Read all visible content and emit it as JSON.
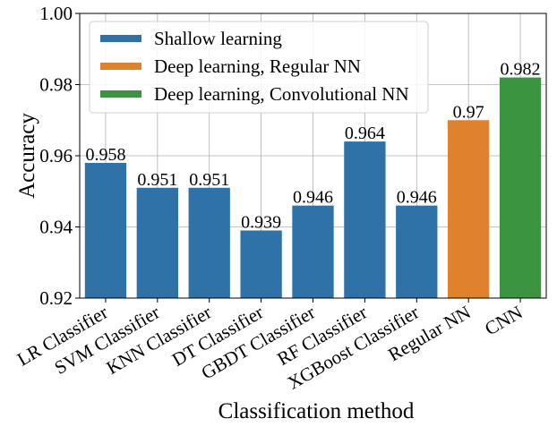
{
  "chart_data": {
    "type": "bar",
    "title": "",
    "xlabel": "Classification method",
    "ylabel": "Accuracy",
    "ylim": [
      0.92,
      1.0
    ],
    "yticks": [
      "0.92",
      "0.94",
      "0.96",
      "0.98",
      "1.00"
    ],
    "grid": true,
    "legend_position": "top-left",
    "categories": [
      "LR Classifier",
      "SVM Classifier",
      "KNN Classifier",
      "DT Classifier",
      "GBDT Classifier",
      "RF Classifier",
      "XGBoost Classifier",
      "Regular NN",
      "CNN"
    ],
    "values": [
      0.958,
      0.951,
      0.951,
      0.939,
      0.946,
      0.964,
      0.946,
      0.97,
      0.982
    ],
    "data_labels": [
      "0.958",
      "0.951",
      "0.951",
      "0.939",
      "0.946",
      "0.964",
      "0.946",
      "0.97",
      "0.982"
    ],
    "groups": [
      0,
      0,
      0,
      0,
      0,
      0,
      0,
      1,
      2
    ],
    "legend": [
      {
        "name": "Shallow learning",
        "color": "#2e72a8"
      },
      {
        "name": "Deep learning, Regular NN",
        "color": "#e0822c"
      },
      {
        "name": "Deep learning, Convolutional NN",
        "color": "#3a9440"
      }
    ]
  }
}
